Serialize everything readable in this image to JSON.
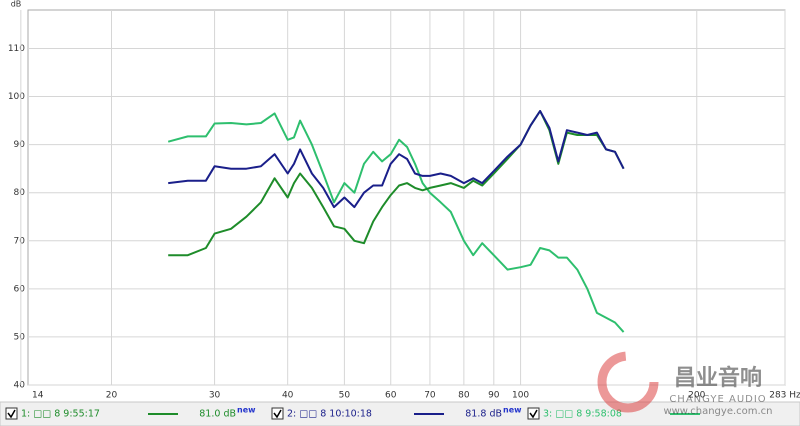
{
  "chart_data": {
    "type": "line",
    "y_axis_label": "dB",
    "log_x": true,
    "grid": true,
    "xlim": [
      14.4,
      283
    ],
    "ylim": [
      40,
      118
    ],
    "xticks": [
      14,
      20,
      30,
      40,
      50,
      60,
      70,
      80,
      90,
      100,
      200,
      {
        "value": 283,
        "label": "283 Hz"
      }
    ],
    "yticks": [
      40,
      50,
      60,
      70,
      80,
      90,
      100,
      110
    ],
    "x": [
      25,
      27,
      29,
      30,
      32,
      34,
      36,
      38,
      40,
      41,
      42,
      44,
      46,
      48,
      50,
      52,
      54,
      56,
      58,
      60,
      62,
      64,
      66,
      68,
      70,
      73,
      76,
      80,
      83,
      86,
      90,
      95,
      100,
      104,
      108,
      112,
      116,
      120,
      125,
      130,
      135,
      140,
      145,
      150
    ],
    "series": [
      {
        "name": "1: □□ 8 9:55:17",
        "level": "81.0 dB",
        "color": "#1e8c2a",
        "values": [
          67,
          67,
          68.5,
          71.5,
          72.5,
          75,
          78,
          83,
          79,
          82,
          84,
          81,
          77,
          73,
          72.5,
          70,
          69.5,
          74,
          77,
          79.5,
          81.5,
          82,
          81,
          80.5,
          81,
          81.5,
          82,
          81,
          82.5,
          81.5,
          84,
          87,
          90,
          94,
          97,
          93,
          86,
          92.5,
          92,
          92,
          92,
          89,
          88.5,
          85
        ]
      },
      {
        "name": "2: □□ 8 10:10:18",
        "level": "81.8 dB",
        "color": "#1a1f8a",
        "values": [
          82,
          82.5,
          82.5,
          85.5,
          85,
          85,
          85.5,
          88,
          84,
          86,
          89,
          84,
          81,
          77,
          79,
          77,
          80,
          81.5,
          81.5,
          86,
          88,
          87,
          84,
          83.5,
          83.5,
          84,
          83.5,
          82,
          83,
          82,
          84.5,
          87.5,
          90,
          94,
          97,
          93.5,
          86.5,
          93,
          92.5,
          92,
          92.5,
          89,
          88.5,
          85
        ]
      },
      {
        "name": "3: □□ 8 9:58:08",
        "color": "#2ebf6e",
        "values": [
          90.6,
          91.7,
          91.7,
          94.4,
          94.5,
          94.2,
          94.5,
          96.5,
          91,
          91.5,
          95,
          90,
          84,
          78,
          82,
          80,
          86,
          88.5,
          86.5,
          88,
          91,
          89.5,
          86,
          82,
          80,
          78,
          76,
          70,
          67,
          69.5,
          67,
          64,
          64.5,
          65,
          68.5,
          68,
          66.5,
          66.5,
          64,
          60,
          55,
          54,
          53,
          51
        ]
      }
    ],
    "new_tag": "new"
  },
  "watermark": {
    "brand": "昌业音响",
    "brand_en": "CHANGYE AUDIO",
    "url": "www.changye.com.cn"
  }
}
